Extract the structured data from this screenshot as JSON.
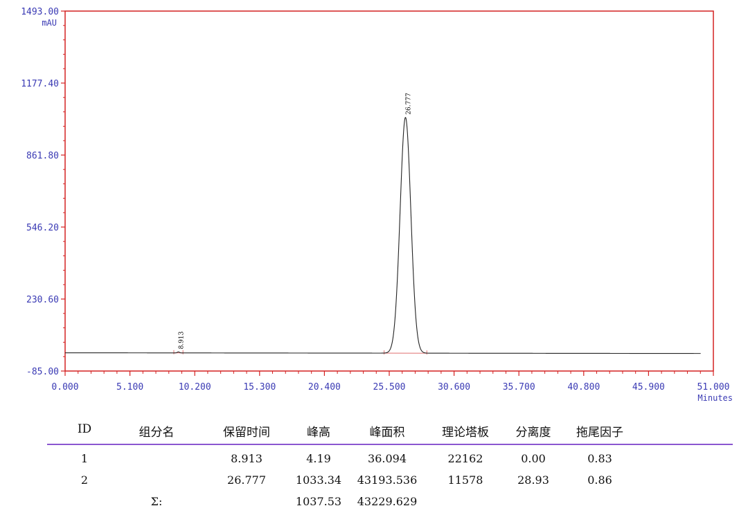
{
  "chart_data": {
    "type": "line",
    "y_axis": {
      "unit": "mAU",
      "ylim": [
        -85.0,
        1493.0
      ],
      "tick_labels": [
        "1493.00",
        "1177.40",
        "861.80",
        "546.20",
        "230.60",
        "-85.00"
      ],
      "tick_values": [
        1493.0,
        1177.4,
        861.8,
        546.2,
        230.6,
        -85.0
      ]
    },
    "x_axis": {
      "unit": "Minutes",
      "xlim": [
        0.0,
        51.0
      ],
      "tick_labels": [
        "0.000",
        "5.100",
        "10.200",
        "15.300",
        "20.400",
        "25.500",
        "30.600",
        "35.700",
        "40.800",
        "45.900",
        "51.000"
      ],
      "tick_values": [
        0.0,
        5.1,
        10.2,
        15.3,
        20.4,
        25.5,
        30.6,
        35.7,
        40.8,
        45.9,
        51.0
      ]
    },
    "grid": false,
    "baseline": {
      "x_start": 0.0,
      "x_end": 50.0,
      "y_start": -5.0,
      "y_end": -8.0
    },
    "peaks": [
      {
        "label": "8.913",
        "rt": 8.913,
        "height": 4.19,
        "sigma": 0.09
      },
      {
        "label": "26.777",
        "rt": 26.777,
        "height": 1033.34,
        "sigma": 0.42
      }
    ],
    "colors": {
      "frame": "#d42020",
      "tick_text": "#3a3ab4",
      "trace": "#222222",
      "integration_baseline": "#e07070"
    }
  },
  "table": {
    "headers": [
      "ID",
      "组分名",
      "保留时间",
      "峰高",
      "峰面积",
      "理论塔板",
      "分离度",
      "拖尾因子"
    ],
    "rows": [
      [
        "1",
        "",
        "8.913",
        "4.19",
        "36.094",
        "22162",
        "0.00",
        "0.83"
      ],
      [
        "2",
        "",
        "26.777",
        "1033.34",
        "43193.536",
        "11578",
        "28.93",
        "0.86"
      ]
    ],
    "sum_row": [
      "",
      "Σ:",
      "",
      "1037.53",
      "43229.629",
      "",
      "",
      ""
    ],
    "divider_color": "#8a56d0"
  }
}
